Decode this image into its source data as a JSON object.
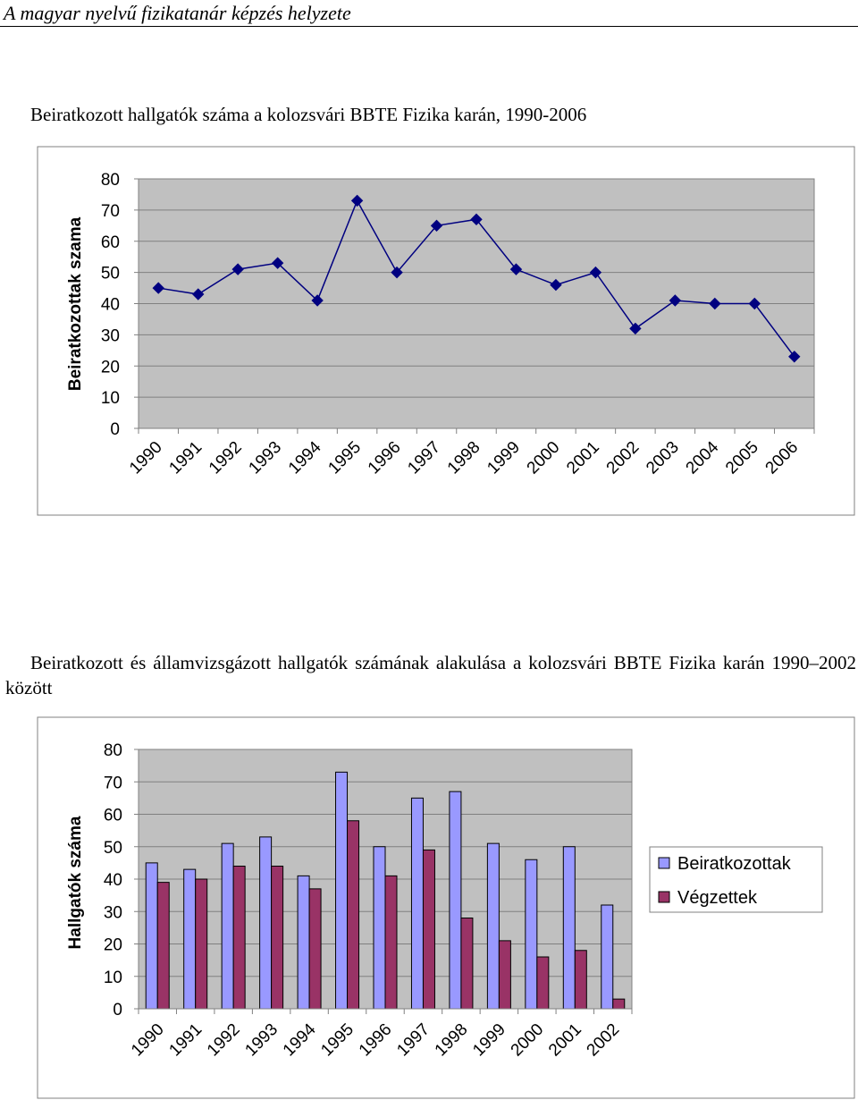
{
  "header": {
    "title": "A magyar nyelvű fizikatanár képzés helyzete"
  },
  "chart_data": [
    {
      "type": "line",
      "title": "Beiratkozott hallgatók száma a kolozsvári BBTE Fizika karán, 1990-2006",
      "ylabel": "Beiratkozottak szama",
      "xlabel": "",
      "categories": [
        "1990",
        "1991",
        "1992",
        "1993",
        "1994",
        "1995",
        "1996",
        "1997",
        "1998",
        "1999",
        "2000",
        "2001",
        "2002",
        "2003",
        "2004",
        "2005",
        "2006"
      ],
      "values": [
        45,
        43,
        51,
        53,
        41,
        73,
        50,
        65,
        67,
        51,
        46,
        50,
        32,
        41,
        40,
        40,
        23
      ],
      "ylim": [
        0,
        80
      ],
      "yticks": [
        "0",
        "10",
        "20",
        "30",
        "40",
        "50",
        "60",
        "70",
        "80"
      ],
      "grid": true,
      "colors": {
        "line": "#000080",
        "plot_bg": "#c0c0c0"
      }
    },
    {
      "type": "bar",
      "title": "Beiratkozott és államvizsgázott hallgatók számának alakulása a kolozsvári BBTE Fizika karán 1990–2002 között",
      "ylabel": "Hallgatók száma",
      "xlabel": "",
      "categories": [
        "1990",
        "1991",
        "1992",
        "1993",
        "1994",
        "1995",
        "1996",
        "1997",
        "1998",
        "1999",
        "2000",
        "2001",
        "2002"
      ],
      "series": [
        {
          "name": "Beiratkozottak",
          "values": [
            45,
            43,
            51,
            53,
            41,
            73,
            50,
            65,
            67,
            51,
            46,
            50,
            32
          ],
          "color": "#9999ff"
        },
        {
          "name": "Végzettek",
          "values": [
            39,
            40,
            44,
            44,
            37,
            58,
            41,
            49,
            28,
            21,
            16,
            18,
            3
          ],
          "color": "#993366"
        }
      ],
      "ylim": [
        0,
        80
      ],
      "yticks": [
        "0",
        "10",
        "20",
        "30",
        "40",
        "50",
        "60",
        "70",
        "80"
      ],
      "grid": true,
      "legend": "right",
      "colors": {
        "plot_bg": "#c0c0c0"
      }
    }
  ]
}
